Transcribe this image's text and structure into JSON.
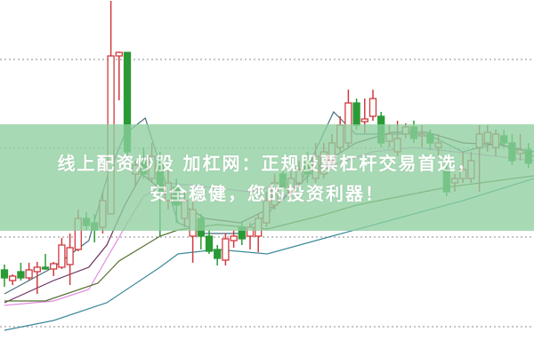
{
  "banner": {
    "line1": "线上配资炒股 加杠网：正规股票杠杆交易首选，",
    "line2": "安全稳健，您的投资利器！",
    "color": "#8fd0a0"
  },
  "chart_data": {
    "type": "candlestick",
    "title": "",
    "xlabel": "",
    "ylabel": "",
    "grid": "horizontal dotted",
    "ylim": [
      0,
      40.1
    ],
    "gridlines": [
      33.4,
      23.4,
      13.4,
      3.3
    ],
    "colors": {
      "up": "#d0393e",
      "down": "#2a9a35",
      "grid": "#b0b0b0"
    },
    "candles": [
      [
        9.7,
        8.8,
        10.3,
        7.8
      ],
      [
        8.5,
        9.0,
        9.2,
        8.0
      ],
      [
        9.5,
        8.8,
        10.5,
        8.5
      ],
      [
        8.8,
        9.7,
        10.5,
        8.5
      ],
      [
        9.5,
        10.0,
        10.6,
        7.0
      ],
      [
        10.0,
        9.8,
        11.5,
        9.7
      ],
      [
        9.8,
        10.4,
        10.6,
        9.0
      ],
      [
        10.0,
        12.5,
        13.3,
        9.8
      ],
      [
        10.3,
        12.2,
        13.8,
        8.0
      ],
      [
        12.0,
        15.5,
        16.5,
        11.8
      ],
      [
        15.5,
        14.7,
        16.2,
        14.2
      ],
      [
        15.0,
        14.2,
        16.0,
        12.8
      ],
      [
        14.5,
        17.5,
        18.5,
        13.8
      ],
      [
        16.0,
        33.8,
        40.0,
        16.0
      ],
      [
        33.8,
        34.2,
        34.3,
        28.8
      ],
      [
        34.2,
        23.0,
        34.2,
        22.5
      ],
      [
        20.5,
        21.5,
        22.0,
        19.0
      ],
      [
        22.0,
        20.5,
        23.5,
        20.0
      ],
      [
        20.0,
        22.5,
        24.0,
        19.5
      ],
      [
        22.0,
        18.5,
        23.0,
        13.5
      ],
      [
        17.5,
        19.5,
        21.0,
        16.5
      ],
      [
        19.0,
        17.0,
        20.0,
        15.0
      ],
      [
        15.5,
        17.5,
        18.5,
        14.5
      ],
      [
        13.5,
        16.5,
        17.5,
        10.5
      ],
      [
        15.5,
        13.5,
        16.0,
        12.0
      ],
      [
        13.5,
        11.8,
        14.2,
        11.5
      ],
      [
        12.0,
        11.0,
        12.5,
        10.2
      ],
      [
        10.8,
        13.2,
        13.8,
        10.2
      ],
      [
        13.0,
        13.5,
        14.2,
        12.2
      ],
      [
        14.5,
        13.2,
        15.2,
        12.5
      ],
      [
        13.5,
        14.5,
        15.0,
        12.0
      ],
      [
        13.5,
        15.5,
        16.0,
        11.7
      ],
      [
        15.0,
        17.5,
        18.5,
        14.5
      ],
      [
        17.0,
        19.5,
        20.5,
        16.5
      ],
      [
        20.5,
        19.0,
        21.0,
        18.5
      ],
      [
        18.5,
        20.0,
        20.8,
        17.8
      ],
      [
        19.5,
        21.0,
        22.0,
        19.0
      ],
      [
        22.0,
        20.5,
        23.0,
        19.5
      ],
      [
        20.0,
        22.5,
        24.0,
        19.5
      ],
      [
        20.5,
        23.0,
        24.0,
        20.0
      ],
      [
        22.0,
        24.0,
        25.0,
        21.5
      ],
      [
        23.5,
        26.0,
        27.0,
        23.0
      ],
      [
        24.0,
        28.5,
        30.0,
        23.5
      ],
      [
        28.5,
        26.0,
        29.0,
        25.5
      ],
      [
        26.4,
        26.7,
        29.0,
        25.0
      ],
      [
        27.0,
        29.0,
        30.0,
        26.5
      ],
      [
        27.0,
        24.0,
        27.5,
        23.5
      ],
      [
        24.2,
        25.0,
        26.0,
        23.5
      ],
      [
        23.0,
        24.5,
        26.5,
        22.5
      ],
      [
        25.0,
        25.8,
        26.2,
        24.5
      ],
      [
        25.8,
        24.5,
        26.5,
        24.0
      ],
      [
        24.8,
        25.0,
        26.0,
        23.5
      ],
      [
        25.0,
        24.0,
        25.5,
        23.2
      ],
      [
        23.5,
        24.0,
        25.0,
        22.5
      ],
      [
        21.0,
        18.5,
        21.5,
        18.0
      ],
      [
        19.5,
        20.0,
        20.5,
        18.5
      ],
      [
        20.0,
        21.0,
        23.0,
        19.5
      ],
      [
        20.0,
        22.0,
        23.0,
        19.5
      ],
      [
        23.5,
        25.0,
        26.0,
        18.5
      ],
      [
        24.0,
        25.2,
        26.0,
        23.0
      ],
      [
        23.5,
        25.0,
        25.5,
        22.5
      ],
      [
        24.8,
        24.0,
        25.5,
        23.5
      ],
      [
        24.0,
        22.0,
        25.0,
        21.5
      ],
      [
        22.8,
        23.2,
        25.0,
        22.0
      ],
      [
        23.2,
        21.7,
        24.0,
        21.2
      ]
    ],
    "moving_averages": [
      {
        "color": "#4b6e80",
        "points": [
          [
            0,
            7.0
          ],
          [
            6,
            10.0
          ],
          [
            10.3,
            13.0
          ],
          [
            12.5,
            20.0
          ],
          [
            14.7,
            25.0
          ],
          [
            17.2,
            26.8
          ],
          [
            18.5,
            23.0
          ],
          [
            21.2,
            15.0
          ],
          [
            24.5,
            13.8
          ],
          [
            28.8,
            13.8
          ],
          [
            32.1,
            16.0
          ],
          [
            36.4,
            20.0
          ],
          [
            40.2,
            27.5
          ],
          [
            42.9,
            25.0
          ],
          [
            47.3,
            25.0
          ],
          [
            50.5,
            25.0
          ],
          [
            52.7,
            24.5
          ],
          [
            56,
            23.0
          ],
          [
            60.3,
            24.0
          ],
          [
            64.7,
            22.5
          ]
        ]
      },
      {
        "color": "#6b2f5f",
        "points": [
          [
            0,
            6.0
          ],
          [
            6,
            8.5
          ],
          [
            10.3,
            10.0
          ],
          [
            12.5,
            12.5
          ],
          [
            14.7,
            17.0
          ],
          [
            16.8,
            20.5
          ],
          [
            20.1,
            18.0
          ],
          [
            24.5,
            15.5
          ],
          [
            28.8,
            15.0
          ],
          [
            33.2,
            17.0
          ],
          [
            38.6,
            21.5
          ],
          [
            42.9,
            24.0
          ],
          [
            47.3,
            25.2
          ],
          [
            51.6,
            25.2
          ],
          [
            56,
            24.0
          ],
          [
            60.3,
            23.8
          ],
          [
            64.7,
            23.0
          ]
        ]
      },
      {
        "color": "#e38be0",
        "points": [
          [
            0,
            5.7
          ],
          [
            6,
            6.2
          ],
          [
            10.3,
            7.5
          ],
          [
            12.5,
            11.0
          ],
          [
            14.7,
            14.5
          ],
          [
            17,
            18.0
          ],
          [
            20,
            19.5
          ],
          [
            25,
            19.0
          ],
          [
            30,
            18.5
          ],
          [
            35,
            19.5
          ],
          [
            40,
            21.5
          ],
          [
            45,
            23.0
          ],
          [
            50,
            23.5
          ],
          [
            55,
            23.0
          ],
          [
            60,
            22.5
          ],
          [
            64.7,
            22.0
          ]
        ]
      },
      {
        "color": "#55702f",
        "points": [
          [
            0,
            6.2
          ],
          [
            5,
            6.2
          ],
          [
            11.4,
            8.2
          ],
          [
            14,
            10.7
          ],
          [
            19,
            13.5
          ],
          [
            21.2,
            14.2
          ],
          [
            26,
            14.8
          ],
          [
            32.1,
            14.3
          ],
          [
            38.6,
            15.8
          ],
          [
            43,
            17.0
          ],
          [
            54,
            19.0
          ],
          [
            64.7,
            20.3
          ]
        ]
      },
      {
        "color": "#3c8a9a",
        "points": [
          [
            0,
            2.9
          ],
          [
            6,
            4.0
          ],
          [
            12.5,
            6.0
          ],
          [
            19,
            10.0
          ],
          [
            21.2,
            11.5
          ],
          [
            26,
            12.0
          ],
          [
            32.1,
            11.5
          ],
          [
            40,
            13.5
          ],
          [
            48,
            15.5
          ],
          [
            56,
            17.5
          ],
          [
            64.7,
            20.0
          ]
        ]
      }
    ]
  }
}
